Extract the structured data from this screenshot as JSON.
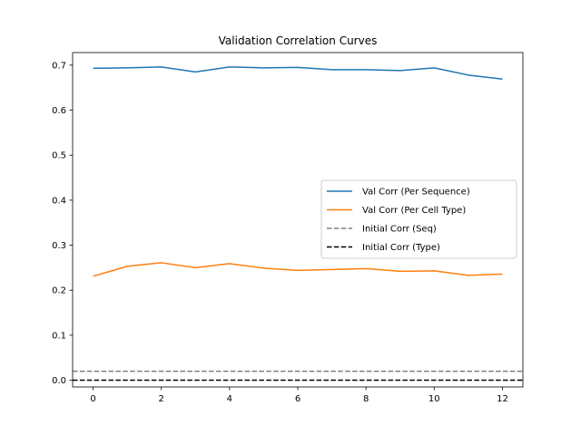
{
  "chart_data": {
    "type": "line",
    "title": "Validation Correlation Curves",
    "xlabel": "",
    "ylabel": "",
    "xlim": [
      -0.6,
      12.6
    ],
    "ylim": [
      -0.015,
      0.728
    ],
    "xticks": [
      0,
      2,
      4,
      6,
      8,
      10,
      12
    ],
    "yticks": [
      0.0,
      0.1,
      0.2,
      0.3,
      0.4,
      0.5,
      0.6,
      0.7
    ],
    "grid": false,
    "legend_position": "center-right",
    "x": [
      0,
      1,
      2,
      3,
      4,
      5,
      6,
      7,
      8,
      9,
      10,
      11,
      12
    ],
    "series": [
      {
        "name": "Val Corr (Per Sequence)",
        "color": "#1f77b4",
        "style": "solid",
        "values": [
          0.693,
          0.694,
          0.696,
          0.685,
          0.696,
          0.694,
          0.695,
          0.69,
          0.69,
          0.688,
          0.694,
          0.678,
          0.669
        ]
      },
      {
        "name": "Val Corr (Per Cell Type)",
        "color": "#ff7f0e",
        "style": "solid",
        "values": [
          0.231,
          0.253,
          0.261,
          0.25,
          0.259,
          0.249,
          0.244,
          0.246,
          0.248,
          0.242,
          0.243,
          0.233,
          0.236
        ]
      }
    ],
    "hlines": [
      {
        "name": "Initial Corr (Seq)",
        "y": 0.02,
        "color": "#808080",
        "style": "dashed"
      },
      {
        "name": "Initial Corr (Type)",
        "y": 0.0,
        "color": "#000000",
        "style": "dashed"
      }
    ]
  }
}
